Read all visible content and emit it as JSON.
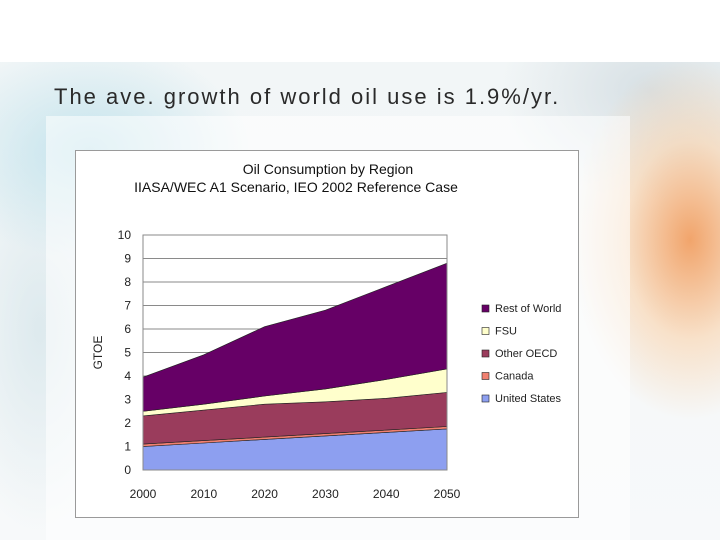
{
  "slide": {
    "title": "The ave. growth of world oil use is 1.9%/yr."
  },
  "chart_data": {
    "type": "area",
    "stacked": true,
    "title": "Oil Consumption by Region",
    "subtitle": "IIASA/WEC A1 Scenario, IEO 2002 Reference Case",
    "xlabel": "",
    "ylabel": "GTOE",
    "x": [
      2000,
      2010,
      2020,
      2030,
      2040,
      2050
    ],
    "xlim": [
      2000,
      2050
    ],
    "ylim": [
      0,
      10
    ],
    "yticks": [
      0,
      1,
      2,
      3,
      4,
      5,
      6,
      7,
      8,
      9,
      10
    ],
    "grid": "horizontal",
    "legend_position": "right",
    "series": [
      {
        "name": "United States",
        "color": "#8d9ff0",
        "values": [
          1.0,
          1.15,
          1.3,
          1.45,
          1.6,
          1.75
        ]
      },
      {
        "name": "Canada",
        "color": "#f08070",
        "values": [
          0.1,
          0.1,
          0.1,
          0.1,
          0.1,
          0.1
        ]
      },
      {
        "name": "Other OECD",
        "color": "#9a3c5c",
        "values": [
          1.2,
          1.3,
          1.4,
          1.35,
          1.35,
          1.45
        ]
      },
      {
        "name": "FSU",
        "color": "#ffffcc",
        "values": [
          0.2,
          0.25,
          0.35,
          0.55,
          0.8,
          1.0
        ]
      },
      {
        "name": "Rest of World",
        "color": "#660066",
        "values": [
          1.45,
          2.1,
          2.95,
          3.35,
          3.95,
          4.5
        ]
      }
    ]
  }
}
